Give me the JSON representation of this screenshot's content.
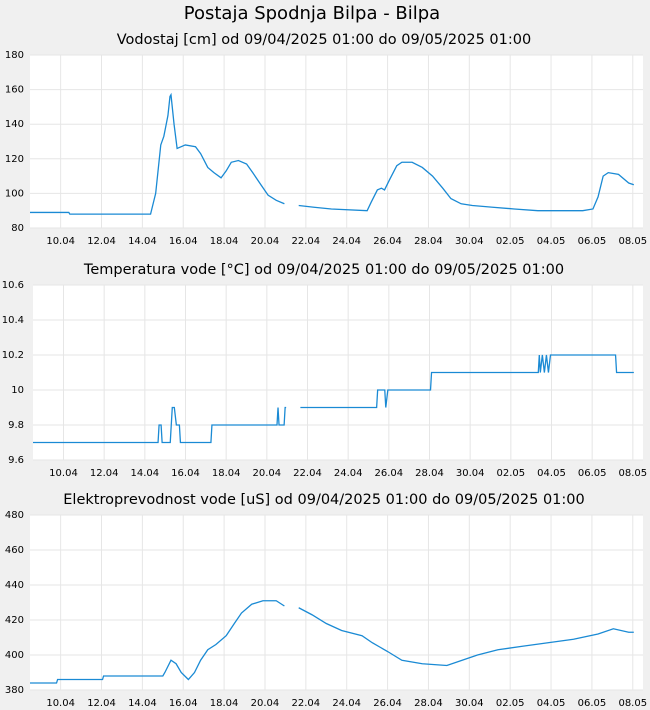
{
  "title": "Postaja Spodnja Bilpa - Bilpa",
  "chart_data": [
    {
      "type": "line",
      "title": "Vodostaj [cm] od 09/04/2025 01:00 do 09/05/2025 01:00",
      "x": [
        0,
        1.9,
        1.95,
        5.9,
        6.15,
        6.4,
        6.55,
        6.75,
        6.85,
        6.9,
        7.05,
        7.2,
        7.6,
        8.1,
        8.35,
        8.7,
        9.0,
        9.35,
        9.6,
        9.85,
        10.2,
        10.6,
        10.9,
        11.3,
        11.65,
        12.05,
        12.45,
        12.8,
        13.15,
        13.9,
        14.75,
        16.5,
        16.7,
        17.0,
        17.2,
        17.35,
        17.6,
        17.95,
        18.2,
        18.7,
        19.2,
        19.7,
        20.2,
        20.6,
        21.1,
        21.65,
        22.65,
        23.7,
        24.85,
        27.05,
        27.55,
        27.8,
        28.05,
        28.3,
        28.8,
        29.3,
        29.55
      ],
      "series": [
        {
          "color": "#1a8ad4",
          "values": [
            89,
            89,
            88,
            88,
            100,
            128,
            133,
            145,
            156,
            157,
            140,
            126,
            128,
            127,
            123,
            115,
            112,
            109,
            113,
            118,
            119,
            117,
            112,
            105,
            99,
            96,
            94,
            null,
            93,
            92,
            91,
            90,
            95,
            102,
            103,
            102,
            108,
            116,
            118,
            118,
            115,
            110,
            103,
            97,
            94,
            93,
            92,
            91,
            90,
            90,
            91,
            98,
            110,
            112,
            111,
            106,
            105
          ]
        }
      ],
      "xlim": [
        0,
        30
      ],
      "xticks": [
        {
          "value": 1.5,
          "label": "10.04"
        },
        {
          "value": 3.5,
          "label": "12.04"
        },
        {
          "value": 5.5,
          "label": "14.04"
        },
        {
          "value": 7.5,
          "label": "16.04"
        },
        {
          "value": 9.5,
          "label": "18.04"
        },
        {
          "value": 11.5,
          "label": "20.04"
        },
        {
          "value": 13.5,
          "label": "22.04"
        },
        {
          "value": 15.5,
          "label": "24.04"
        },
        {
          "value": 17.5,
          "label": "26.04"
        },
        {
          "value": 19.5,
          "label": "28.04"
        },
        {
          "value": 21.5,
          "label": "30.04"
        },
        {
          "value": 23.5,
          "label": "02.05"
        },
        {
          "value": 25.5,
          "label": "04.05"
        },
        {
          "value": 27.5,
          "label": "06.05"
        },
        {
          "value": 29.5,
          "label": "08.05"
        }
      ],
      "ylim": [
        80,
        180
      ],
      "yticks": [
        80,
        100,
        120,
        140,
        160,
        180
      ],
      "grid": true
    },
    {
      "type": "line",
      "title": "Temperatura vode [°C] od 09/04/2025 01:00 do 09/05/2025 01:00",
      "x": [
        0,
        6.15,
        6.2,
        6.3,
        6.35,
        6.75,
        6.85,
        6.95,
        7.05,
        7.2,
        7.25,
        8.75,
        8.8,
        12.0,
        12.05,
        12.1,
        12.35,
        12.4,
        12.45,
        12.8,
        13.15,
        16.9,
        16.95,
        17.3,
        17.35,
        17.45,
        19.55,
        19.6,
        24.85,
        24.9,
        24.95,
        25.05,
        25.15,
        25.25,
        25.35,
        25.45,
        28.65,
        28.7,
        29.55
      ],
      "series": [
        {
          "color": "#1a8ad4",
          "values": [
            9.7,
            9.7,
            9.8,
            9.8,
            9.7,
            9.7,
            9.9,
            9.9,
            9.8,
            9.8,
            9.7,
            9.7,
            9.8,
            9.8,
            9.9,
            9.8,
            9.8,
            9.9,
            9.9,
            null,
            9.9,
            9.9,
            10,
            10,
            9.9,
            10,
            10,
            10.1,
            10.1,
            10.2,
            10.1,
            10.2,
            10.1,
            10.2,
            10.1,
            10.2,
            10.2,
            10.1,
            10.1
          ]
        }
      ],
      "xlim": [
        0,
        30
      ],
      "xticks": [
        {
          "value": 1.5,
          "label": "10.04"
        },
        {
          "value": 3.5,
          "label": "12.04"
        },
        {
          "value": 5.5,
          "label": "14.04"
        },
        {
          "value": 7.5,
          "label": "16.04"
        },
        {
          "value": 9.5,
          "label": "18.04"
        },
        {
          "value": 11.5,
          "label": "20.04"
        },
        {
          "value": 13.5,
          "label": "22.04"
        },
        {
          "value": 15.5,
          "label": "24.04"
        },
        {
          "value": 17.5,
          "label": "26.04"
        },
        {
          "value": 19.5,
          "label": "28.04"
        },
        {
          "value": 21.5,
          "label": "30.04"
        },
        {
          "value": 23.5,
          "label": "02.05"
        },
        {
          "value": 25.5,
          "label": "04.05"
        },
        {
          "value": 27.5,
          "label": "06.05"
        },
        {
          "value": 29.5,
          "label": "08.05"
        }
      ],
      "ylim": [
        9.6,
        10.6
      ],
      "yticks": [
        9.6,
        9.8,
        10,
        10.2,
        10.4,
        10.6
      ],
      "grid": true
    },
    {
      "type": "line",
      "title": "Elektroprevodnost vode [uS] od 09/04/2025 01:00 do 09/05/2025 01:00",
      "x": [
        0,
        1.3,
        1.35,
        3.55,
        3.6,
        6.5,
        6.6,
        6.9,
        7.15,
        7.4,
        7.75,
        8.05,
        8.35,
        8.7,
        9.1,
        9.6,
        10.0,
        10.35,
        10.85,
        11.4,
        12.05,
        12.45,
        12.8,
        13.15,
        13.8,
        14.5,
        15.25,
        16.25,
        16.75,
        17.5,
        18.2,
        19.2,
        20.4,
        21.15,
        21.9,
        22.9,
        24.1,
        25.35,
        26.6,
        27.8,
        28.55,
        29.3,
        29.55
      ],
      "series": [
        {
          "color": "#1a8ad4",
          "values": [
            384,
            384,
            386,
            386,
            388,
            388,
            390,
            397,
            395,
            390,
            386,
            390,
            397,
            403,
            406,
            411,
            418,
            424,
            429,
            431,
            431,
            428,
            null,
            427,
            423,
            418,
            414,
            411,
            407,
            402,
            397,
            395,
            394,
            397,
            400,
            403,
            405,
            407,
            409,
            412,
            415,
            413,
            413
          ]
        }
      ],
      "xlim": [
        0,
        30
      ],
      "xticks": [
        {
          "value": 1.5,
          "label": "10.04"
        },
        {
          "value": 3.5,
          "label": "12.04"
        },
        {
          "value": 5.5,
          "label": "14.04"
        },
        {
          "value": 7.5,
          "label": "16.04"
        },
        {
          "value": 9.5,
          "label": "18.04"
        },
        {
          "value": 11.5,
          "label": "20.04"
        },
        {
          "value": 13.5,
          "label": "22.04"
        },
        {
          "value": 15.5,
          "label": "24.04"
        },
        {
          "value": 17.5,
          "label": "26.04"
        },
        {
          "value": 19.5,
          "label": "28.04"
        },
        {
          "value": 21.5,
          "label": "30.04"
        },
        {
          "value": 23.5,
          "label": "02.05"
        },
        {
          "value": 25.5,
          "label": "04.05"
        },
        {
          "value": 27.5,
          "label": "06.05"
        },
        {
          "value": 29.5,
          "label": "08.05"
        }
      ],
      "ylim": [
        380,
        480
      ],
      "yticks": [
        380,
        400,
        420,
        440,
        460,
        480
      ],
      "grid": true
    }
  ]
}
